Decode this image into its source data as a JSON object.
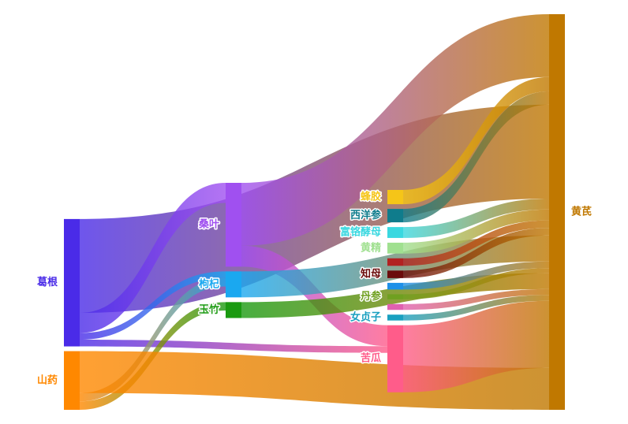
{
  "chart_data": {
    "type": "sankey",
    "nodes": [
      {
        "name": "葛根",
        "color": "#4a2be8"
      },
      {
        "name": "蜂胶",
        "color": "#f5c518"
      },
      {
        "name": "西洋参",
        "color": "#0f7c8c"
      },
      {
        "name": "富铬酵母",
        "color": "#3ad8e0"
      },
      {
        "name": "黄精",
        "color": "#a0e090"
      },
      {
        "name": null,
        "color": "#b22222"
      },
      {
        "name": "知母",
        "color": "#6b0c0c"
      },
      {
        "name": null,
        "color": "#1e90e8"
      },
      {
        "name": "丹参",
        "color": "#6fa020"
      },
      {
        "name": null,
        "color": "#e060b0"
      },
      {
        "name": "女贞子",
        "color": "#1aa0c0"
      },
      {
        "name": "桑叶",
        "color": "#a050f0"
      },
      {
        "name": "山药",
        "color": "#ff8800"
      },
      {
        "name": "苦瓜",
        "color": "#ff5c8a"
      },
      {
        "name": "枸杞",
        "color": "#1aa8f0"
      },
      {
        "name": "玉竹",
        "color": "#1a9a10"
      },
      {
        "name": "黄芪",
        "color": "#c07800"
      }
    ],
    "links": [
      {
        "source": 0,
        "target": 16,
        "value": 112
      },
      {
        "source": 0,
        "target": 11,
        "value": 24
      },
      {
        "source": 0,
        "target": 13,
        "value": 8
      },
      {
        "source": 0,
        "target": 14,
        "value": 8
      },
      {
        "source": 11,
        "target": 16,
        "value": 75
      },
      {
        "source": 11,
        "target": 13,
        "value": 25
      },
      {
        "source": 12,
        "target": 14,
        "value": 10
      },
      {
        "source": 12,
        "target": 15,
        "value": 10
      },
      {
        "source": 12,
        "target": 16,
        "value": 50
      },
      {
        "source": 13,
        "target": 16,
        "value": 80
      },
      {
        "source": 14,
        "target": 16,
        "value": 31
      },
      {
        "source": 15,
        "target": 16,
        "value": 19
      },
      {
        "source": 1,
        "target": 16,
        "value": 17
      },
      {
        "source": 2,
        "target": 16,
        "value": 16
      },
      {
        "source": 3,
        "target": 16,
        "value": 13
      },
      {
        "source": 4,
        "target": 16,
        "value": 13
      },
      {
        "source": 5,
        "target": 16,
        "value": 9
      },
      {
        "source": 6,
        "target": 16,
        "value": 9
      },
      {
        "source": 7,
        "target": 16,
        "value": 8
      },
      {
        "source": 8,
        "target": 16,
        "value": 6
      },
      {
        "source": 9,
        "target": 16,
        "value": 7
      },
      {
        "source": 10,
        "target": 16,
        "value": 7
      }
    ]
  }
}
